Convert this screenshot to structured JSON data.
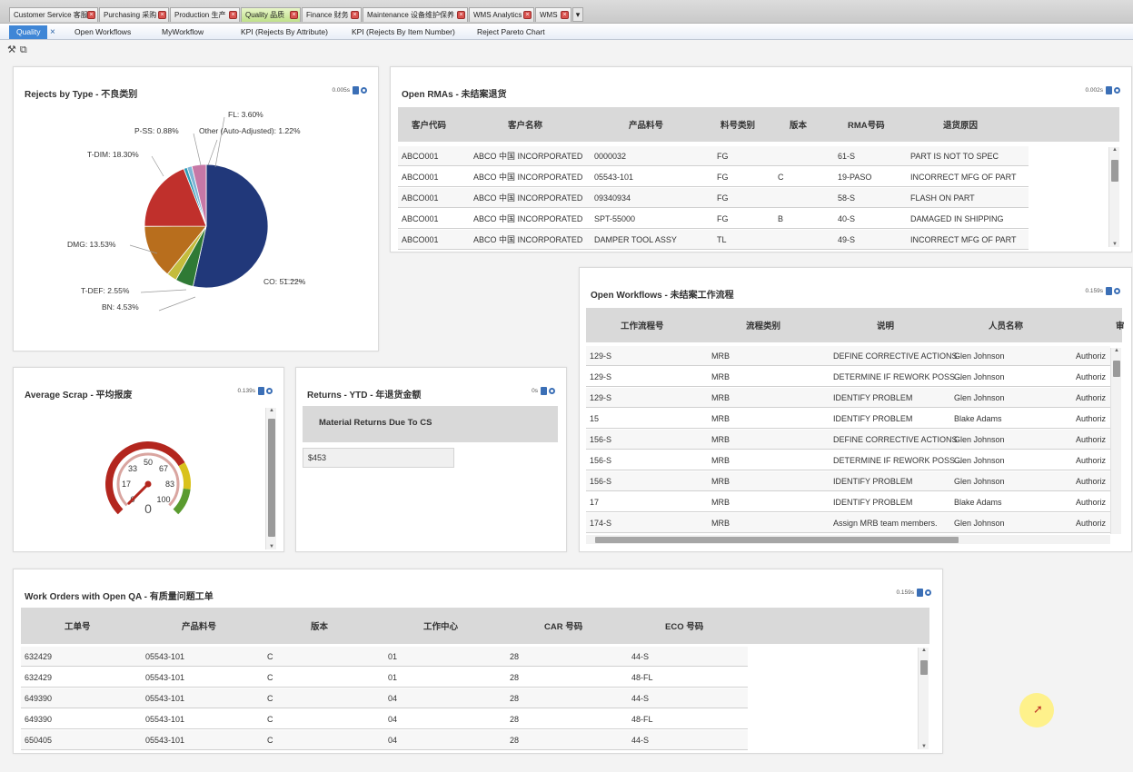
{
  "module_tabs": [
    {
      "label": "Customer Service 客服",
      "active": false
    },
    {
      "label": "Purchasing 采购",
      "active": false
    },
    {
      "label": "Production 生产",
      "active": false
    },
    {
      "label": "Quality 品质",
      "active": true
    },
    {
      "label": "Finance 财务",
      "active": false
    },
    {
      "label": "Maintenance 设备维护保养",
      "active": false
    },
    {
      "label": "WMS Analytics",
      "active": false
    },
    {
      "label": "WMS",
      "active": false
    }
  ],
  "module_tab_more": "▾",
  "sub_tabs": [
    {
      "label": "Quality",
      "active": true
    },
    {
      "label": "Open Workflows",
      "active": false
    },
    {
      "label": "MyWorkflow",
      "active": false
    },
    {
      "label": "KPI (Rejects By Attribute)",
      "active": false
    },
    {
      "label": "KPI (Rejects By Item Number)",
      "active": false
    },
    {
      "label": "Reject Pareto Chart",
      "active": false
    }
  ],
  "toolbar": {
    "icons": [
      "wrench-icon",
      "copy-icon"
    ]
  },
  "panels": {
    "rejects": {
      "title": "Rejects by Type - 不良类别",
      "timing": "0.005s",
      "chart_data": {
        "type": "pie",
        "categories": [
          "CO",
          "BN",
          "T-DEF",
          "DMG",
          "T-DIM",
          "P-SS",
          "Other (Auto-Adjusted)",
          "FL"
        ],
        "values": [
          51.22,
          4.53,
          2.55,
          13.53,
          18.3,
          0.88,
          1.22,
          3.6
        ],
        "labels": [
          "CO: 51.22%",
          "BN: 4.53%",
          "T-DEF: 2.55%",
          "DMG: 13.53%",
          "T-DIM: 18.30%",
          "P-SS: 0.88%",
          "Other (Auto-Adjusted): 1.22%",
          "FL: 3.60%"
        ],
        "colors": [
          "#21387a",
          "#2f7a35",
          "#c4bc3c",
          "#b86e1d",
          "#c0302c",
          "#2e9bb6",
          "#7fb6d6",
          "#c678a6"
        ]
      }
    },
    "rmas": {
      "title": "Open RMAs - 未结案退货",
      "timing": "0.002s",
      "columns": [
        "客户代码",
        "客户名称",
        "产品料号",
        "料号类别",
        "版本",
        "RMA号码",
        "退货原因"
      ],
      "rows": [
        [
          "ABCO001",
          "ABCO 中国 INCORPORATED",
          "0000032",
          "FG",
          "",
          "61-S",
          "PART IS NOT TO SPEC"
        ],
        [
          "ABCO001",
          "ABCO 中国 INCORPORATED",
          "05543-101",
          "FG",
          "C",
          "19-PASO",
          "INCORRECT MFG OF PART"
        ],
        [
          "ABCO001",
          "ABCO 中国 INCORPORATED",
          "09340934",
          "FG",
          "",
          "58-S",
          "FLASH ON PART"
        ],
        [
          "ABCO001",
          "ABCO 中国 INCORPORATED",
          "SPT-55000",
          "FG",
          "B",
          "40-S",
          "DAMAGED IN SHIPPING"
        ],
        [
          "ABCO001",
          "ABCO 中国 INCORPORATED",
          "DAMPER TOOL ASSY",
          "TL",
          "",
          "49-S",
          "INCORRECT MFG OF PART"
        ]
      ]
    },
    "workflows": {
      "title": "Open Workflows - 未结案工作流程",
      "timing": "0.159s",
      "columns": [
        "工作流程号",
        "流程类别",
        "说明",
        "人员名称",
        "审"
      ],
      "rows": [
        [
          "129-S",
          "MRB",
          "DEFINE CORRECTIVE ACTIONS",
          "Glen Johnson",
          "Authoriz"
        ],
        [
          "129-S",
          "MRB",
          "DETERMINE IF REWORK POSS...",
          "Glen Johnson",
          "Authoriz"
        ],
        [
          "129-S",
          "MRB",
          "IDENTIFY PROBLEM",
          "Glen Johnson",
          "Authoriz"
        ],
        [
          "15",
          "MRB",
          "IDENTIFY PROBLEM",
          "Blake Adams",
          "Authoriz"
        ],
        [
          "156-S",
          "MRB",
          "DEFINE CORRECTIVE ACTIONS",
          "Glen Johnson",
          "Authoriz"
        ],
        [
          "156-S",
          "MRB",
          "DETERMINE IF REWORK POSS...",
          "Glen Johnson",
          "Authoriz"
        ],
        [
          "156-S",
          "MRB",
          "IDENTIFY PROBLEM",
          "Glen Johnson",
          "Authoriz"
        ],
        [
          "17",
          "MRB",
          "IDENTIFY PROBLEM",
          "Blake Adams",
          "Authoriz"
        ],
        [
          "174-S",
          "MRB",
          "Assign MRB team members.",
          "Glen Johnson",
          "Authoriz"
        ]
      ]
    },
    "scrap": {
      "title": "Average Scrap - 平均报废",
      "timing": "0.139s",
      "gauge": {
        "value": 0,
        "min": 0,
        "max": 100,
        "tick_labels": [
          "0",
          "17",
          "33",
          "50",
          "67",
          "83",
          "100"
        ],
        "value_label": "0",
        "colors": {
          "red": "#b3261e",
          "yellow": "#d9c21c",
          "green": "#5a9b2f"
        }
      }
    },
    "returns": {
      "title": "Returns - YTD - 年退货金额",
      "timing": "0s",
      "header": "Material Returns Due To CS",
      "value": "$453"
    },
    "work_orders": {
      "title": "Work Orders with Open QA - 有质量问题工单",
      "timing": "0.159s",
      "columns": [
        "工单号",
        "产品料号",
        "版本",
        "工作中心",
        "CAR 号码",
        "ECO 号码"
      ],
      "rows": [
        [
          "632429",
          "05543-101",
          "C",
          "01",
          "28",
          "44-S"
        ],
        [
          "632429",
          "05543-101",
          "C",
          "01",
          "28",
          "48-FL"
        ],
        [
          "649390",
          "05543-101",
          "C",
          "04",
          "28",
          "44-S"
        ],
        [
          "649390",
          "05543-101",
          "C",
          "04",
          "28",
          "48-FL"
        ],
        [
          "650405",
          "05543-101",
          "C",
          "04",
          "28",
          "44-S"
        ]
      ]
    }
  }
}
